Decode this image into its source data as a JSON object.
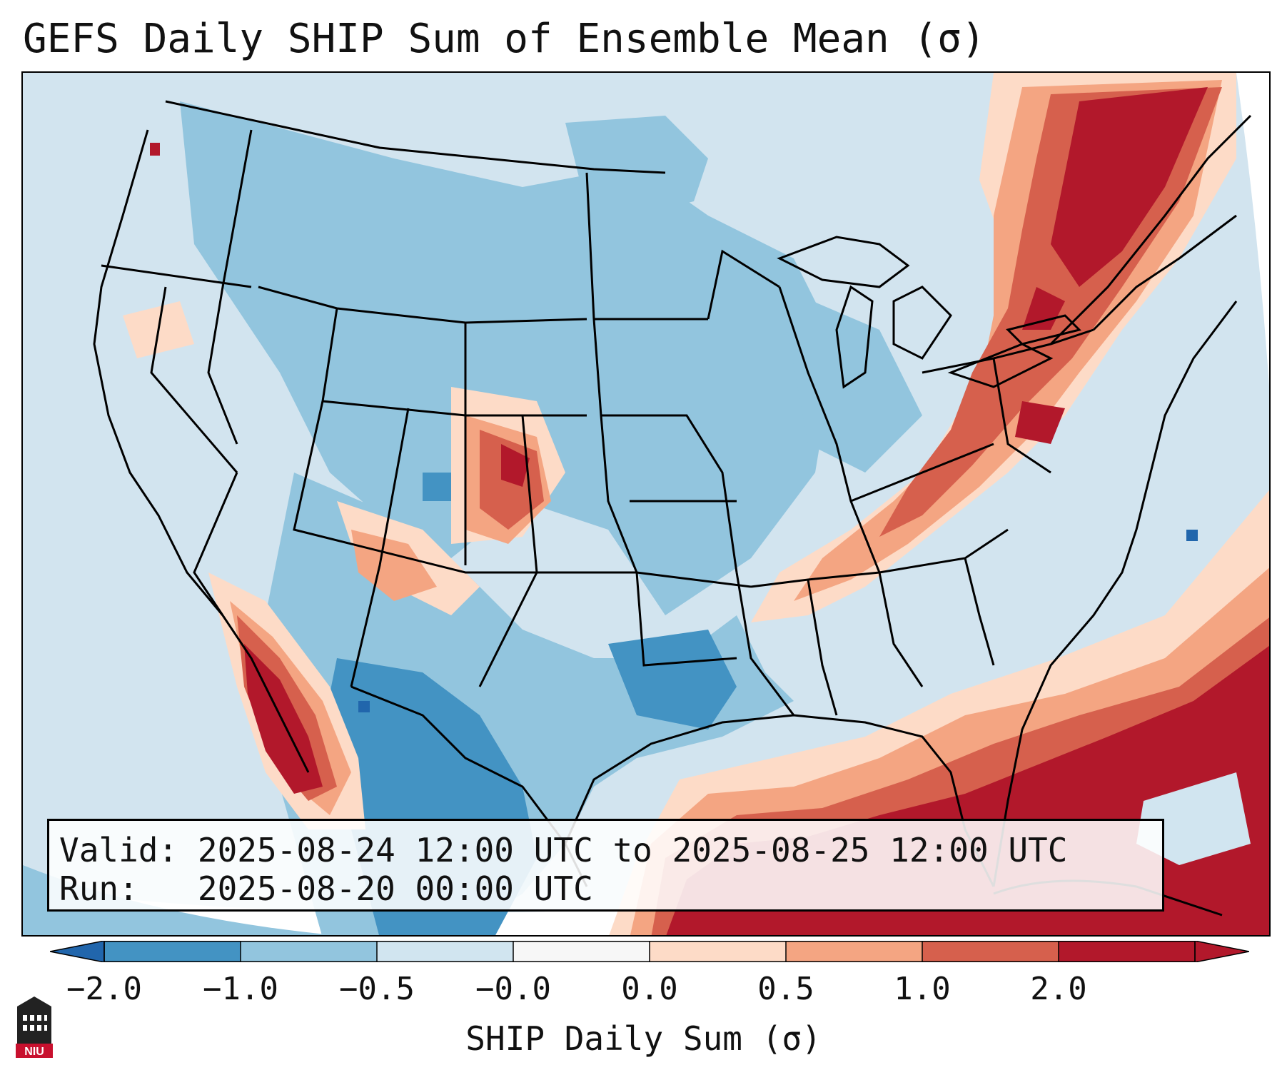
{
  "title": "GEFS Daily SHIP Sum of Ensemble Mean (σ)",
  "info": {
    "valid_label": "Valid:",
    "valid_value": "2025-08-24 12:00 UTC to 2025-08-25 12:00 UTC",
    "run_label": "Run:",
    "run_value": "2025-08-20 00:00 UTC"
  },
  "colorbar": {
    "label": "SHIP Daily Sum (σ)",
    "ticks": [
      "−2.0",
      "−1.0",
      "−0.5",
      "−0.0",
      "0.0",
      "0.5",
      "1.0",
      "2.0"
    ],
    "colors": [
      "#4393c3",
      "#92c5de",
      "#d1e5f0",
      "#f7f7f7",
      "#fddbc7",
      "#f4a582",
      "#d6604d",
      "#b2182b"
    ],
    "extend_low": "#2166ac",
    "extend_high": "#b2182b"
  },
  "logo": {
    "text": "NIU",
    "icon": "niu-logo-icon"
  },
  "palette": {
    "ocean": "#d2e4ef",
    "outside": "#ffffff",
    "border": "#000000"
  }
}
